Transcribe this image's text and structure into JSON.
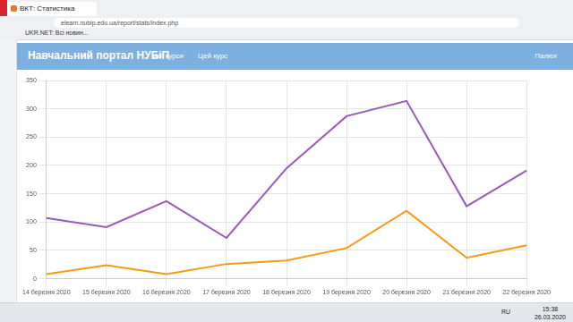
{
  "browser": {
    "tab": "ВКТ: Статистика",
    "url": "elearn.nubip.edu.ua/report/stats/index.php",
    "bookmark": "UKR.NET: Всі новин..."
  },
  "header": {
    "title": "Навчальний портал НУБіП",
    "menu": [
      "Мої курси",
      "Цей курс"
    ],
    "user": "Палюх"
  },
  "chart_data": {
    "type": "line",
    "categories": [
      "14 березня 2020",
      "15 березня 2020",
      "16 березня 2020",
      "17 березня 2020",
      "18 березня 2020",
      "19 березня 2020",
      "20 березня 2020",
      "21 березня 2020",
      "22 березня 2020"
    ],
    "series": [
      {
        "color": "#9b59b6",
        "values": [
          107,
          91,
          137,
          72,
          195,
          287,
          314,
          128,
          191
        ]
      },
      {
        "color": "#f39c12",
        "values": [
          8,
          24,
          8,
          26,
          32,
          54,
          120,
          37,
          59
        ]
      }
    ],
    "ylim": [
      0,
      350
    ],
    "yticks": [
      0,
      50,
      100,
      150,
      200,
      250,
      300,
      350
    ],
    "grid": true
  },
  "taskbar": {
    "language": "RU",
    "time": "15:38",
    "date": "26.03.2020"
  }
}
